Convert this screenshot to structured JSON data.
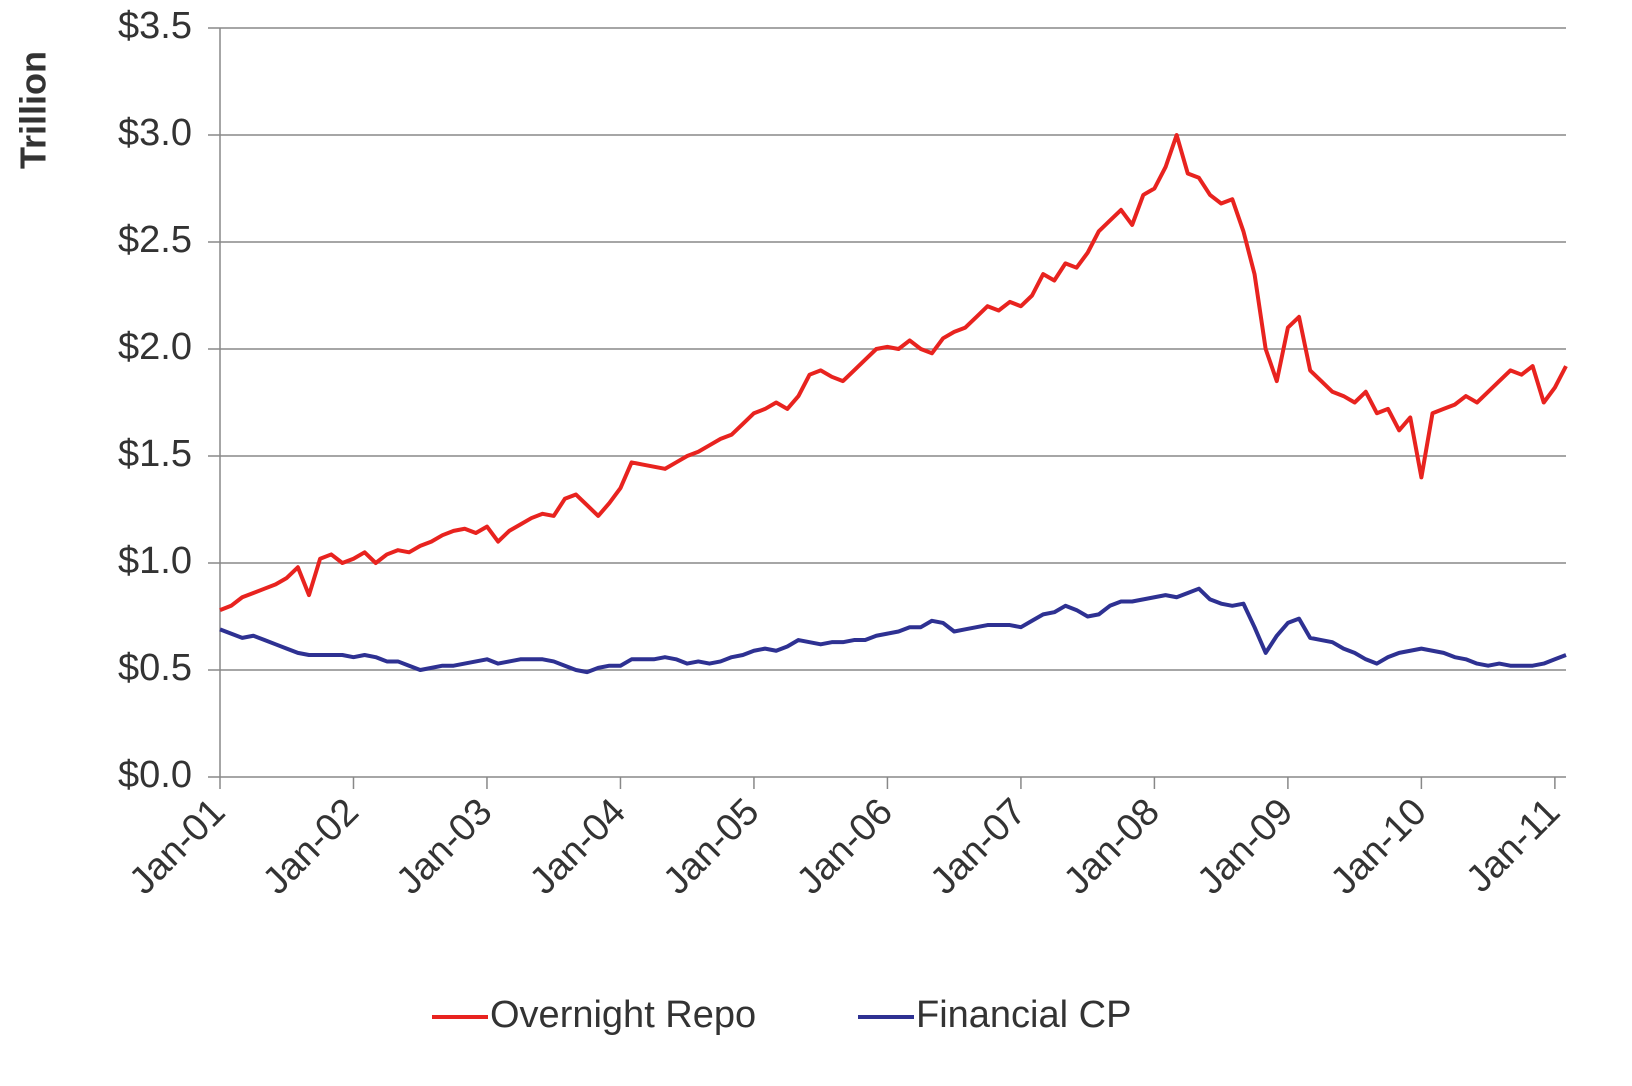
{
  "chart_data": {
    "type": "line",
    "y_label": "Trillion",
    "x": [
      "2001-01",
      "2001-02",
      "2001-03",
      "2001-04",
      "2001-05",
      "2001-06",
      "2001-07",
      "2001-08",
      "2001-09",
      "2001-10",
      "2001-11",
      "2001-12",
      "2002-01",
      "2002-02",
      "2002-03",
      "2002-04",
      "2002-05",
      "2002-06",
      "2002-07",
      "2002-08",
      "2002-09",
      "2002-10",
      "2002-11",
      "2002-12",
      "2003-01",
      "2003-02",
      "2003-03",
      "2003-04",
      "2003-05",
      "2003-06",
      "2003-07",
      "2003-08",
      "2003-09",
      "2003-10",
      "2003-11",
      "2003-12",
      "2004-01",
      "2004-02",
      "2004-03",
      "2004-04",
      "2004-05",
      "2004-06",
      "2004-07",
      "2004-08",
      "2004-09",
      "2004-10",
      "2004-11",
      "2004-12",
      "2005-01",
      "2005-02",
      "2005-03",
      "2005-04",
      "2005-05",
      "2005-06",
      "2005-07",
      "2005-08",
      "2005-09",
      "2005-10",
      "2005-11",
      "2005-12",
      "2006-01",
      "2006-02",
      "2006-03",
      "2006-04",
      "2006-05",
      "2006-06",
      "2006-07",
      "2006-08",
      "2006-09",
      "2006-10",
      "2006-11",
      "2006-12",
      "2007-01",
      "2007-02",
      "2007-03",
      "2007-04",
      "2007-05",
      "2007-06",
      "2007-07",
      "2007-08",
      "2007-09",
      "2007-10",
      "2007-11",
      "2007-12",
      "2008-01",
      "2008-02",
      "2008-03",
      "2008-04",
      "2008-05",
      "2008-06",
      "2008-07",
      "2008-08",
      "2008-09",
      "2008-10",
      "2008-11",
      "2008-12",
      "2009-01",
      "2009-02",
      "2009-03",
      "2009-04",
      "2009-05",
      "2009-06",
      "2009-07",
      "2009-08",
      "2009-09",
      "2009-10",
      "2009-11",
      "2009-12",
      "2010-01",
      "2010-02",
      "2010-03",
      "2010-04",
      "2010-05",
      "2010-06",
      "2010-07",
      "2010-08",
      "2010-09",
      "2010-10",
      "2010-11",
      "2010-12",
      "2011-01",
      "2011-02"
    ],
    "series": [
      {
        "name": "Overnight Repo",
        "color": "#e8231f",
        "values": [
          0.78,
          0.8,
          0.84,
          0.86,
          0.88,
          0.9,
          0.93,
          0.98,
          0.85,
          1.02,
          1.04,
          1.0,
          1.02,
          1.05,
          1.0,
          1.04,
          1.06,
          1.05,
          1.08,
          1.1,
          1.13,
          1.15,
          1.16,
          1.14,
          1.17,
          1.1,
          1.15,
          1.18,
          1.21,
          1.23,
          1.22,
          1.3,
          1.32,
          1.27,
          1.22,
          1.28,
          1.35,
          1.47,
          1.46,
          1.45,
          1.44,
          1.47,
          1.5,
          1.52,
          1.55,
          1.58,
          1.6,
          1.65,
          1.7,
          1.72,
          1.75,
          1.72,
          1.78,
          1.88,
          1.9,
          1.87,
          1.85,
          1.9,
          1.95,
          2.0,
          2.01,
          2.0,
          2.04,
          2.0,
          1.98,
          2.05,
          2.08,
          2.1,
          2.15,
          2.2,
          2.18,
          2.22,
          2.2,
          2.25,
          2.35,
          2.32,
          2.4,
          2.38,
          2.45,
          2.55,
          2.6,
          2.65,
          2.58,
          2.72,
          2.75,
          2.85,
          3.0,
          2.82,
          2.8,
          2.72,
          2.68,
          2.7,
          2.55,
          2.35,
          2.0,
          1.85,
          2.1,
          2.15,
          1.9,
          1.85,
          1.8,
          1.78,
          1.75,
          1.8,
          1.7,
          1.72,
          1.62,
          1.68,
          1.4,
          1.7,
          1.72,
          1.74,
          1.78,
          1.75,
          1.8,
          1.85,
          1.9,
          1.88,
          1.92,
          1.75,
          1.82,
          1.92
        ]
      },
      {
        "name": "Financial CP",
        "color": "#2e3192",
        "values": [
          0.69,
          0.67,
          0.65,
          0.66,
          0.64,
          0.62,
          0.6,
          0.58,
          0.57,
          0.57,
          0.57,
          0.57,
          0.56,
          0.57,
          0.56,
          0.54,
          0.54,
          0.52,
          0.5,
          0.51,
          0.52,
          0.52,
          0.53,
          0.54,
          0.55,
          0.53,
          0.54,
          0.55,
          0.55,
          0.55,
          0.54,
          0.52,
          0.5,
          0.49,
          0.51,
          0.52,
          0.52,
          0.55,
          0.55,
          0.55,
          0.56,
          0.55,
          0.53,
          0.54,
          0.53,
          0.54,
          0.56,
          0.57,
          0.59,
          0.6,
          0.59,
          0.61,
          0.64,
          0.63,
          0.62,
          0.63,
          0.63,
          0.64,
          0.64,
          0.66,
          0.67,
          0.68,
          0.7,
          0.7,
          0.73,
          0.72,
          0.68,
          0.69,
          0.7,
          0.71,
          0.71,
          0.71,
          0.7,
          0.73,
          0.76,
          0.77,
          0.8,
          0.78,
          0.75,
          0.76,
          0.8,
          0.82,
          0.82,
          0.83,
          0.84,
          0.85,
          0.84,
          0.86,
          0.88,
          0.83,
          0.81,
          0.8,
          0.81,
          0.7,
          0.58,
          0.66,
          0.72,
          0.74,
          0.65,
          0.64,
          0.63,
          0.6,
          0.58,
          0.55,
          0.53,
          0.56,
          0.58,
          0.59,
          0.6,
          0.59,
          0.58,
          0.56,
          0.55,
          0.53,
          0.52,
          0.53,
          0.52,
          0.52,
          0.52,
          0.53,
          0.55,
          0.57
        ]
      }
    ],
    "xlim": [
      "2001-01",
      "2011-02"
    ],
    "xticks": [
      {
        "value": "2001-01",
        "label": "Jan-01"
      },
      {
        "value": "2002-01",
        "label": "Jan-02"
      },
      {
        "value": "2003-01",
        "label": "Jan-03"
      },
      {
        "value": "2004-01",
        "label": "Jan-04"
      },
      {
        "value": "2005-01",
        "label": "Jan-05"
      },
      {
        "value": "2006-01",
        "label": "Jan-06"
      },
      {
        "value": "2007-01",
        "label": "Jan-07"
      },
      {
        "value": "2008-01",
        "label": "Jan-08"
      },
      {
        "value": "2009-01",
        "label": "Jan-09"
      },
      {
        "value": "2010-01",
        "label": "Jan-10"
      },
      {
        "value": "2011-01",
        "label": "Jan-11"
      }
    ],
    "ylim": [
      0,
      3.5
    ],
    "yticks": [
      {
        "value": 0,
        "label": "$0.0"
      },
      {
        "value": 0.5,
        "label": "$0.5"
      },
      {
        "value": 1,
        "label": "$1.0"
      },
      {
        "value": 1.5,
        "label": "$1.5"
      },
      {
        "value": 2,
        "label": "$2.0"
      },
      {
        "value": 2.5,
        "label": "$2.5"
      },
      {
        "value": 3,
        "label": "$3.0"
      },
      {
        "value": 3.5,
        "label": "$3.5"
      }
    ],
    "grid": true,
    "legend": "bottom"
  }
}
